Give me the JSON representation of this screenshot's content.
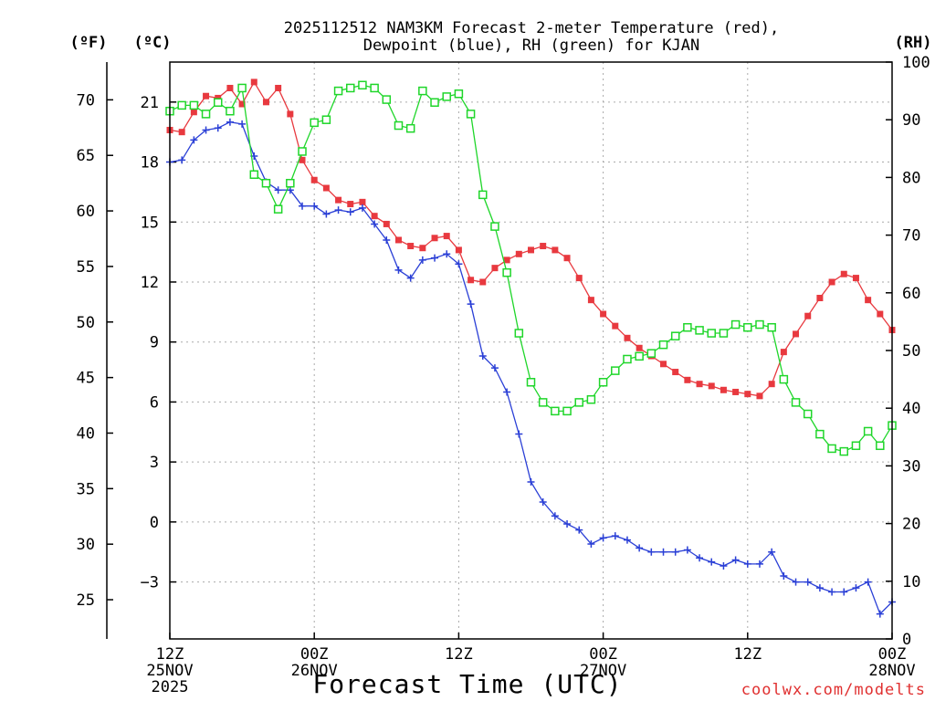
{
  "chart_data": {
    "type": "line",
    "title_lines": [
      "2025112512 NAM3KM Forecast 2-meter Temperature (red),",
      "Dewpoint (blue), RH (green) for KJAN"
    ],
    "xlabel": "Forecast Time (UTC)",
    "credit": "coolwx.com/modelts",
    "units": {
      "fahrenheit": "(ºF)",
      "celsius": "(ºC)",
      "rh": "(RH)"
    },
    "x_hours_range": [
      0,
      60
    ],
    "c_range": [
      -5.85,
      23.0
    ],
    "rh_range": [
      0,
      100
    ],
    "x_ticks": [
      {
        "hour": 0,
        "lines": [
          "12Z",
          "25NOV",
          "2025"
        ]
      },
      {
        "hour": 12,
        "lines": [
          "00Z",
          "26NOV"
        ]
      },
      {
        "hour": 24,
        "lines": [
          "12Z"
        ]
      },
      {
        "hour": 36,
        "lines": [
          "00Z",
          "27NOV"
        ]
      },
      {
        "hour": 48,
        "lines": [
          "12Z"
        ]
      },
      {
        "hour": 60,
        "lines": [
          "00Z",
          "28NOV"
        ]
      }
    ],
    "c_ticks": [
      "21",
      "18",
      "15",
      "12",
      "9",
      "6",
      "3",
      "0",
      "−3"
    ],
    "c_tick_values": [
      21,
      18,
      15,
      12,
      9,
      6,
      3,
      0,
      -3
    ],
    "f_ticks": [
      "70",
      "65",
      "60",
      "55",
      "50",
      "45",
      "40",
      "35",
      "30",
      "25"
    ],
    "f_tick_values": [
      70,
      65,
      60,
      55,
      50,
      45,
      40,
      35,
      30,
      25
    ],
    "rh_ticks": [
      "100",
      "90",
      "80",
      "70",
      "60",
      "50",
      "40",
      "30",
      "20",
      "10",
      "0"
    ],
    "rh_tick_values": [
      100,
      90,
      80,
      70,
      60,
      50,
      40,
      30,
      20,
      10,
      0
    ],
    "series": [
      {
        "name": "Temperature",
        "axis": "celsius",
        "color": "#e8393f",
        "marker": "filled-square",
        "values": [
          19.6,
          19.5,
          20.5,
          21.3,
          21.2,
          21.7,
          20.9,
          22.0,
          21.0,
          21.7,
          20.4,
          18.1,
          17.1,
          16.7,
          16.1,
          15.9,
          16.0,
          15.3,
          14.9,
          14.1,
          13.8,
          13.7,
          14.2,
          14.3,
          13.6,
          12.1,
          12.0,
          12.7,
          13.1,
          13.4,
          13.6,
          13.8,
          13.6,
          13.2,
          12.2,
          11.1,
          10.4,
          9.8,
          9.2,
          8.7,
          8.3,
          7.9,
          7.5,
          7.1,
          6.9,
          6.8,
          6.6,
          6.5,
          6.4,
          6.3,
          6.9,
          8.5,
          9.4,
          10.3,
          11.2,
          12.0,
          12.4,
          12.2,
          11.1,
          10.4,
          9.6
        ]
      },
      {
        "name": "Dewpoint",
        "axis": "celsius",
        "color": "#2a3fd6",
        "marker": "plus",
        "values": [
          18.0,
          18.1,
          19.1,
          19.6,
          19.7,
          20.0,
          19.9,
          18.3,
          17.0,
          16.6,
          16.6,
          15.8,
          15.8,
          15.4,
          15.6,
          15.5,
          15.7,
          14.9,
          14.1,
          12.6,
          12.2,
          13.1,
          13.2,
          13.4,
          12.9,
          10.9,
          8.3,
          7.7,
          6.5,
          4.4,
          2.0,
          1.0,
          0.3,
          -0.1,
          -0.4,
          -1.1,
          -0.8,
          -0.7,
          -0.9,
          -1.3,
          -1.5,
          -1.5,
          -1.5,
          -1.4,
          -1.8,
          -2.0,
          -2.2,
          -1.9,
          -2.1,
          -2.1,
          -1.5,
          -2.7,
          -3.0,
          -3.0,
          -3.3,
          -3.5,
          -3.5,
          -3.3,
          -3.0,
          -4.6,
          -4.0
        ]
      },
      {
        "name": "RH",
        "axis": "rh",
        "color": "#1fd62a",
        "marker": "open-square",
        "values": [
          91.5,
          92.5,
          92.5,
          91.0,
          93.0,
          91.5,
          95.5,
          80.5,
          79.0,
          74.5,
          79.0,
          84.5,
          89.5,
          90.0,
          95.0,
          95.5,
          96.0,
          95.5,
          93.5,
          89.0,
          88.5,
          95.0,
          93.0,
          94.0,
          94.5,
          91.0,
          77.0,
          71.5,
          63.5,
          53.0,
          44.5,
          41.0,
          39.5,
          39.5,
          41.0,
          41.5,
          44.5,
          46.5,
          48.5,
          49.0,
          49.5,
          51.0,
          52.5,
          54.0,
          53.5,
          53.0,
          53.0,
          54.5,
          54.0,
          54.5,
          54.0,
          45.0,
          41.0,
          39.0,
          35.5,
          33.0,
          32.5,
          33.5,
          36.0,
          33.5,
          37.0
        ]
      }
    ]
  }
}
